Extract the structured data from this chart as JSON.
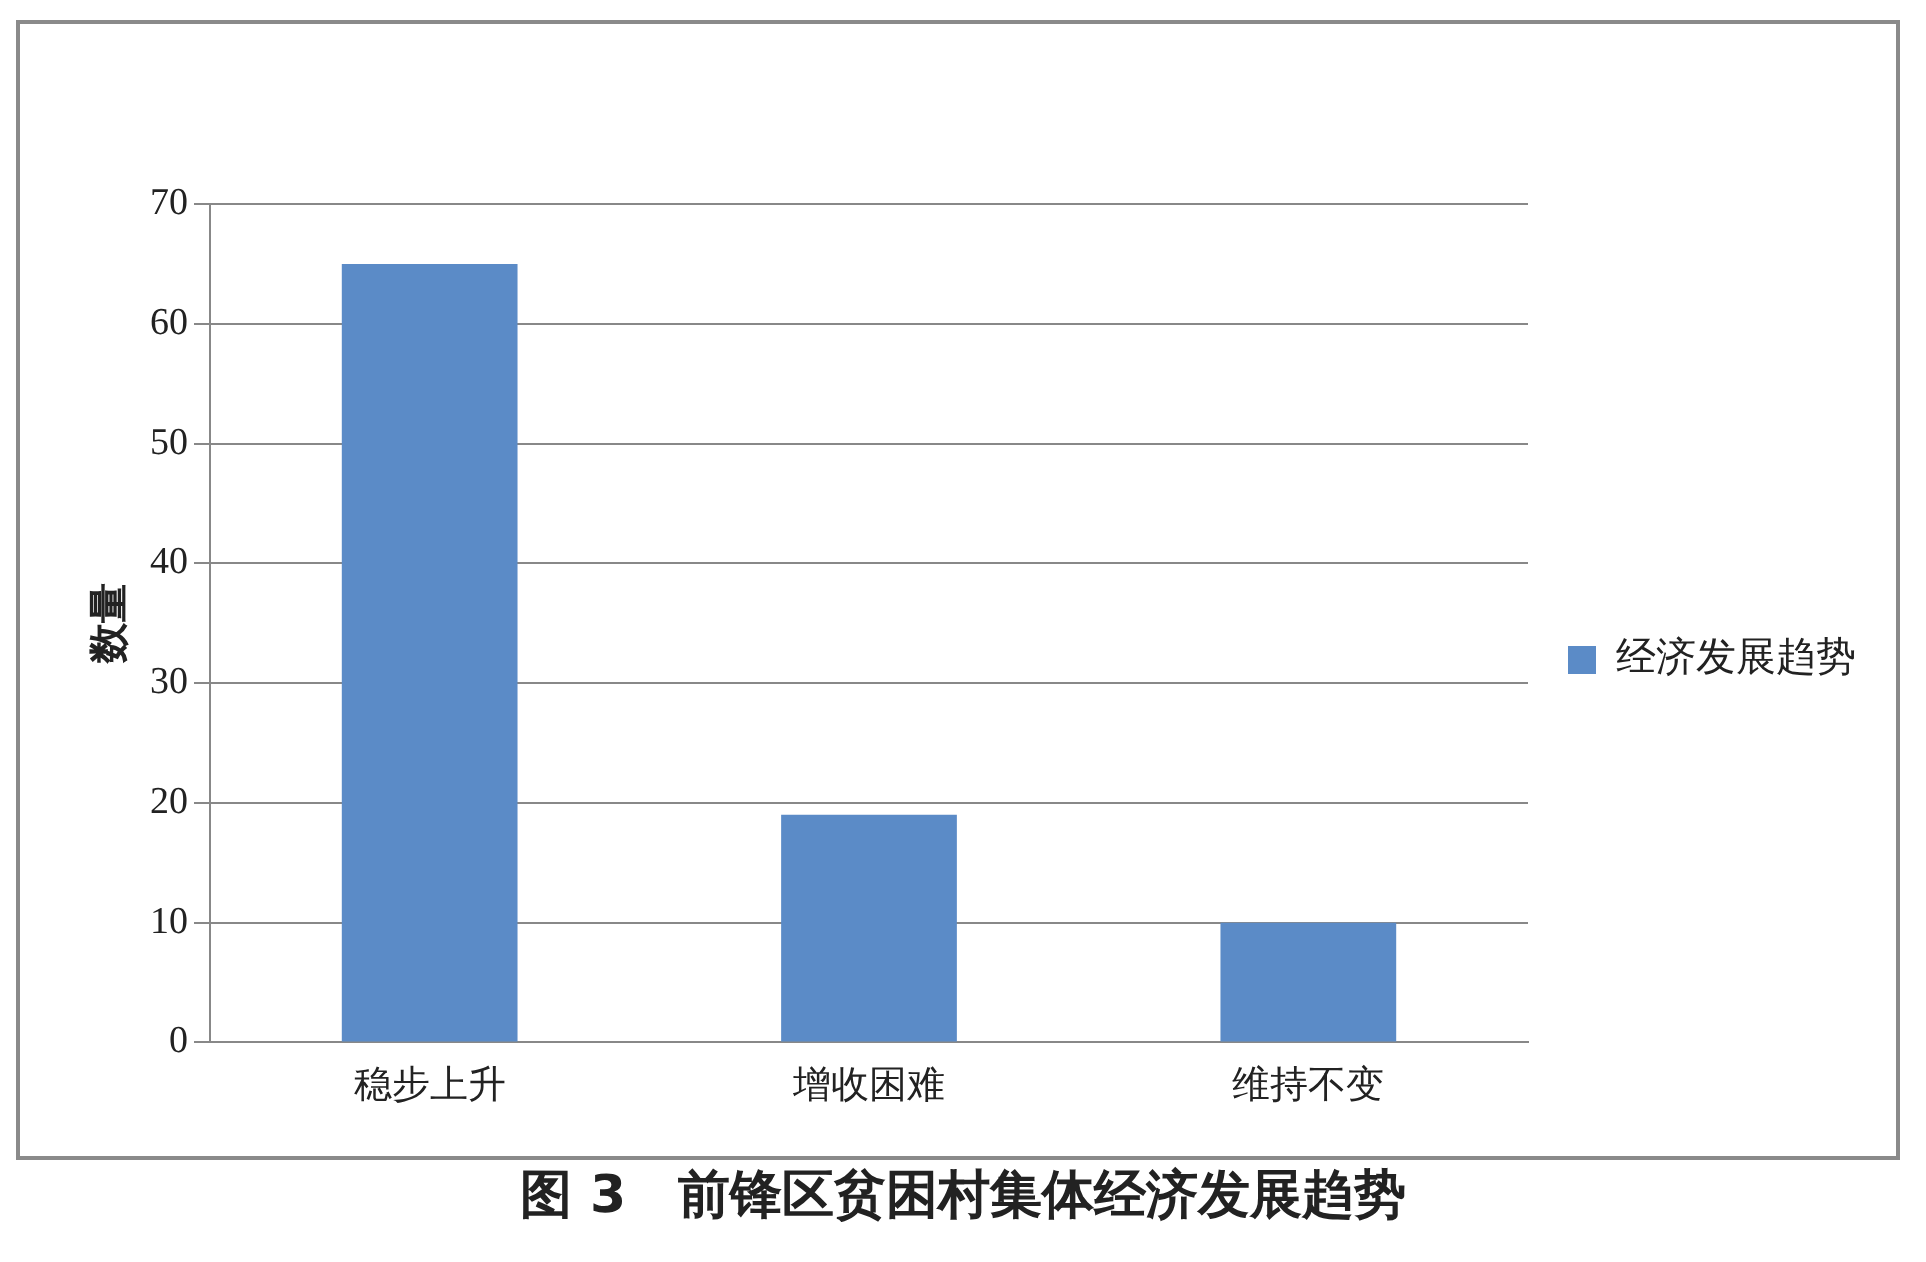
{
  "chart_data": {
    "type": "bar",
    "title": "图 3　前锋区贫困村集体经济发展趋势",
    "ylabel": "数量",
    "categories": [
      "稳步上升",
      "增收困难",
      "维持不变"
    ],
    "series": [
      {
        "name": "经济发展趋势",
        "color": "#5b8bc7",
        "values": [
          65,
          19,
          10
        ]
      }
    ],
    "ylim": [
      0,
      70
    ],
    "yticks": [
      0,
      10,
      20,
      30,
      40,
      50,
      60,
      70
    ],
    "grid": "y",
    "legend": "right"
  }
}
